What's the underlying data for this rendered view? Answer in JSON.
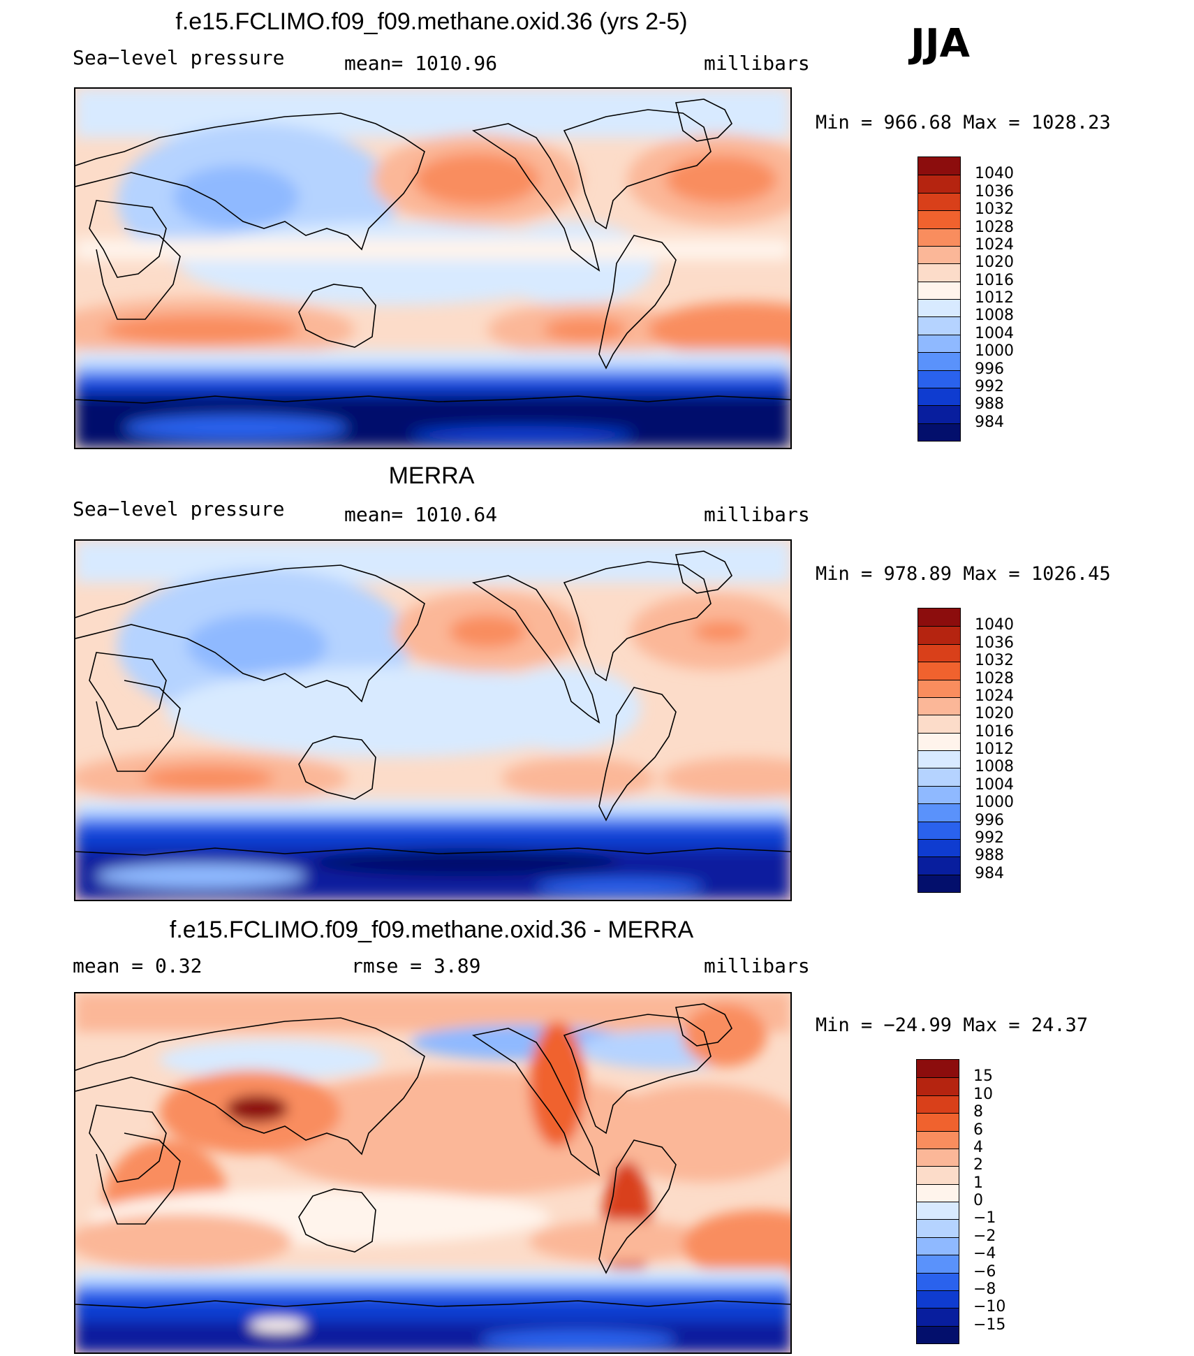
{
  "season": "JJA",
  "panels": [
    {
      "title": "f.e15.FCLIMO.f09_f09.methane.oxid.36 (yrs 2-5)",
      "left_label": "Sea−level pressure",
      "center_label": "mean=  1010.96",
      "right_label": "millibars",
      "minmax": "Min  =  966.68  Max  =  1028.23",
      "colorbar": {
        "ticks": [
          "1040",
          "1036",
          "1032",
          "1028",
          "1024",
          "1020",
          "1016",
          "1012",
          "1008",
          "1004",
          "1000",
          "996",
          "992",
          "988",
          "984"
        ],
        "colors": [
          "#8c0d0d",
          "#b52410",
          "#d9401a",
          "#f0622e",
          "#f98d5e",
          "#fbb798",
          "#fcdcc9",
          "#fff4ec",
          "#d8eaff",
          "#b5d3ff",
          "#8fb9ff",
          "#5a92fb",
          "#2a62ed",
          "#0f3cd0",
          "#081e9e",
          "#030f6c"
        ]
      }
    },
    {
      "title": "MERRA",
      "left_label": "Sea−level pressure",
      "center_label": "mean=  1010.64",
      "right_label": "millibars",
      "minmax": "Min  =  978.89  Max  =  1026.45",
      "colorbar": {
        "ticks": [
          "1040",
          "1036",
          "1032",
          "1028",
          "1024",
          "1020",
          "1016",
          "1012",
          "1008",
          "1004",
          "1000",
          "996",
          "992",
          "988",
          "984"
        ],
        "colors": [
          "#8c0d0d",
          "#b52410",
          "#d9401a",
          "#f0622e",
          "#f98d5e",
          "#fbb798",
          "#fcdcc9",
          "#fff4ec",
          "#d8eaff",
          "#b5d3ff",
          "#8fb9ff",
          "#5a92fb",
          "#2a62ed",
          "#0f3cd0",
          "#081e9e",
          "#030f6c"
        ]
      }
    },
    {
      "title": "f.e15.FCLIMO.f09_f09.methane.oxid.36 - MERRA",
      "left_label": "mean  =      0.32",
      "center_label": "rmse  =      3.89",
      "right_label": "millibars",
      "minmax": "Min  =  −24.99  Max  =     24.37",
      "colorbar": {
        "ticks": [
          "15",
          "10",
          "8",
          "6",
          "4",
          "2",
          "1",
          "0",
          "−1",
          "−2",
          "−4",
          "−6",
          "−8",
          "−10",
          "−15"
        ],
        "colors": [
          "#8c0d0d",
          "#b52410",
          "#d9401a",
          "#f0622e",
          "#f98d5e",
          "#fbb798",
          "#fcdcc9",
          "#fff4ec",
          "#d8eaff",
          "#b5d3ff",
          "#8fb9ff",
          "#5a92fb",
          "#2a62ed",
          "#0f3cd0",
          "#081e9e",
          "#030f6c"
        ]
      }
    }
  ]
}
